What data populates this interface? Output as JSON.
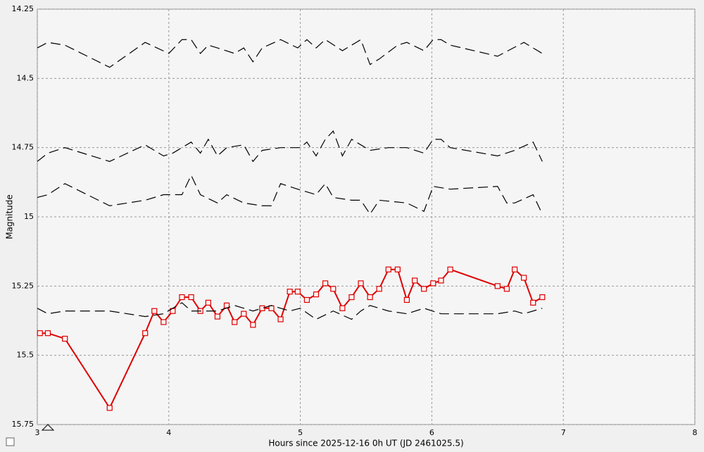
{
  "chart_data": {
    "type": "line",
    "xlabel": "Hours since 2025-12-16 0h UT (JD 2461025.5)",
    "ylabel": "Magnitude",
    "xlim": [
      3,
      8
    ],
    "xticks": [
      3,
      4,
      5,
      6,
      7,
      8
    ],
    "ylim": [
      14.25,
      15.75
    ],
    "yticks": [
      14.25,
      14.5,
      14.75,
      15,
      15.25,
      15.5,
      15.75
    ],
    "y_inverted": true,
    "grid": true,
    "series": [
      {
        "color": "#dd0000",
        "style": "solid",
        "markers": true,
        "x": [
          3.02,
          3.08,
          3.21,
          3.55,
          3.82,
          3.89,
          3.96,
          4.03,
          4.1,
          4.17,
          4.24,
          4.3,
          4.37,
          4.44,
          4.5,
          4.57,
          4.64,
          4.71,
          4.78,
          4.85,
          4.92,
          4.98,
          5.05,
          5.12,
          5.19,
          5.25,
          5.32,
          5.39,
          5.46,
          5.53,
          5.6,
          5.67,
          5.74,
          5.81,
          5.87,
          5.94,
          6.01,
          6.07,
          6.14,
          6.5,
          6.57,
          6.63,
          6.7,
          6.77,
          6.84
        ],
        "values": [
          15.42,
          15.42,
          15.44,
          15.69,
          15.42,
          15.34,
          15.38,
          15.34,
          15.29,
          15.29,
          15.34,
          15.31,
          15.36,
          15.32,
          15.38,
          15.35,
          15.39,
          15.33,
          15.33,
          15.37,
          15.27,
          15.27,
          15.3,
          15.28,
          15.24,
          15.26,
          15.33,
          15.29,
          15.24,
          15.29,
          15.26,
          15.19,
          15.19,
          15.3,
          15.23,
          15.26,
          15.24,
          15.23,
          15.19,
          15.25,
          15.26,
          15.19,
          15.22,
          15.31,
          15.29
        ]
      },
      {
        "color": "#000000",
        "style": "dashed",
        "markers": false,
        "x": [
          3.0,
          3.08,
          3.21,
          3.55,
          3.82,
          4.0,
          4.1,
          4.17,
          4.24,
          4.3,
          4.37,
          4.5,
          4.57,
          4.64,
          4.71,
          4.85,
          4.98,
          5.05,
          5.12,
          5.19,
          5.32,
          5.46,
          5.53,
          5.6,
          5.74,
          5.81,
          5.94,
          6.01,
          6.07,
          6.14,
          6.5,
          6.7,
          6.84
        ],
        "values": [
          14.39,
          14.37,
          14.38,
          14.46,
          14.37,
          14.41,
          14.36,
          14.36,
          14.41,
          14.38,
          14.39,
          14.41,
          14.39,
          14.44,
          14.39,
          14.36,
          14.39,
          14.36,
          14.39,
          14.36,
          14.4,
          14.36,
          14.45,
          14.43,
          14.38,
          14.37,
          14.4,
          14.36,
          14.36,
          14.38,
          14.42,
          14.37,
          14.41
        ]
      },
      {
        "color": "#000000",
        "style": "dashed",
        "markers": false,
        "x": [
          3.0,
          3.08,
          3.21,
          3.55,
          3.82,
          3.96,
          4.03,
          4.17,
          4.24,
          4.3,
          4.37,
          4.44,
          4.57,
          4.64,
          4.71,
          4.85,
          5.0,
          5.05,
          5.12,
          5.19,
          5.25,
          5.32,
          5.39,
          5.53,
          5.67,
          5.81,
          5.94,
          6.01,
          6.07,
          6.14,
          6.5,
          6.63,
          6.77,
          6.84
        ],
        "values": [
          14.8,
          14.77,
          14.75,
          14.8,
          14.74,
          14.78,
          14.77,
          14.73,
          14.77,
          14.72,
          14.78,
          14.75,
          14.74,
          14.8,
          14.76,
          14.75,
          14.75,
          14.73,
          14.78,
          14.72,
          14.69,
          14.78,
          14.72,
          14.76,
          14.75,
          14.75,
          14.77,
          14.72,
          14.72,
          14.75,
          14.78,
          14.76,
          14.73,
          14.8
        ]
      },
      {
        "color": "#000000",
        "style": "dashed",
        "markers": false,
        "x": [
          3.0,
          3.08,
          3.21,
          3.55,
          3.82,
          3.96,
          4.1,
          4.17,
          4.24,
          4.37,
          4.44,
          4.57,
          4.71,
          4.78,
          4.85,
          4.98,
          5.12,
          5.19,
          5.25,
          5.39,
          5.46,
          5.53,
          5.6,
          5.81,
          5.94,
          6.01,
          6.14,
          6.5,
          6.57,
          6.63,
          6.77,
          6.84
        ],
        "values": [
          14.93,
          14.92,
          14.88,
          14.96,
          14.94,
          14.92,
          14.92,
          14.85,
          14.92,
          14.95,
          14.92,
          14.95,
          14.96,
          14.96,
          14.88,
          14.9,
          14.92,
          14.88,
          14.93,
          14.94,
          14.94,
          14.99,
          14.94,
          14.95,
          14.98,
          14.89,
          14.9,
          14.89,
          14.95,
          14.95,
          14.92,
          14.99
        ]
      },
      {
        "color": "#000000",
        "style": "dashed",
        "markers": false,
        "x": [
          3.0,
          3.08,
          3.21,
          3.55,
          3.82,
          3.96,
          4.1,
          4.17,
          4.37,
          4.5,
          4.64,
          4.78,
          4.92,
          5.0,
          5.12,
          5.25,
          5.39,
          5.46,
          5.53,
          5.67,
          5.81,
          5.94,
          6.07,
          6.5,
          6.63,
          6.7,
          6.84
        ],
        "values": [
          15.33,
          15.35,
          15.34,
          15.34,
          15.36,
          15.35,
          15.31,
          15.34,
          15.34,
          15.32,
          15.34,
          15.32,
          15.34,
          15.33,
          15.37,
          15.34,
          15.37,
          15.34,
          15.32,
          15.34,
          15.35,
          15.33,
          15.35,
          15.35,
          15.34,
          15.35,
          15.33
        ]
      }
    ]
  }
}
